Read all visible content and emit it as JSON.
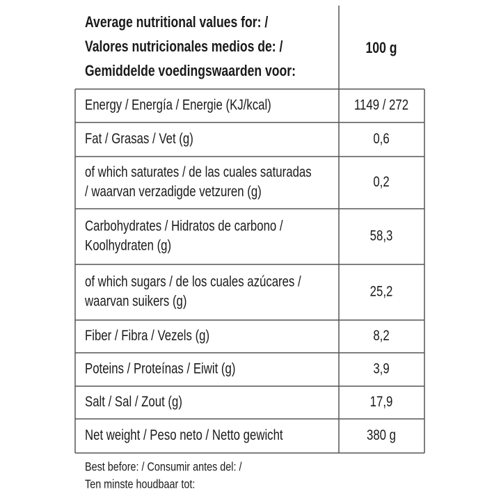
{
  "header": {
    "title_lines": [
      "Average nutritional values for: /",
      "Valores nutricionales medios de: /",
      "Gemiddelde voedingswaarden voor:"
    ],
    "column": "100 g"
  },
  "rows": [
    {
      "label_lines": [
        "Energy / Energía / Energie (KJ/kcal)"
      ],
      "value": "1149 / 272"
    },
    {
      "label_lines": [
        "Fat / Grasas / Vet (g)"
      ],
      "value": "0,6"
    },
    {
      "label_lines": [
        "of which saturates / de las cuales saturadas",
        "/ waarvan verzadigde vetzuren (g)"
      ],
      "value": "0,2"
    },
    {
      "label_lines": [
        "Carbohydrates / Hidratos de carbono /",
        "Koolhydraten (g)"
      ],
      "value": "58,3"
    },
    {
      "label_lines": [
        "of which sugars  / de los cuales azúcares /",
        "waarvan suikers (g)"
      ],
      "value": "25,2"
    },
    {
      "label_lines": [
        "Fiber / Fibra / Vezels (g)"
      ],
      "value": "8,2"
    },
    {
      "label_lines": [
        "Poteins / Proteínas / Eiwit (g)"
      ],
      "value": "3,9"
    },
    {
      "label_lines": [
        "Salt / Sal / Zout (g)"
      ],
      "value": "17,9"
    },
    {
      "label_lines": [
        "Net weight / Peso neto / Netto gewicht"
      ],
      "value": "380 g"
    }
  ],
  "footer_lines": [
    "Best before: / Consumir antes del: /",
    "Ten minste houdbaar tot:"
  ]
}
